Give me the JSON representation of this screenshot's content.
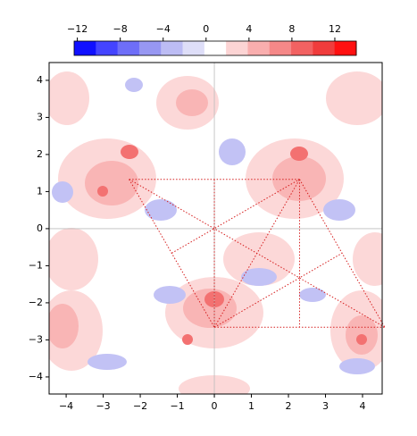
{
  "chart_data": {
    "type": "contour",
    "colorbar": {
      "lim": [
        -12.3,
        14
      ],
      "ticks": [
        {
          "value": -12,
          "label": "−12"
        },
        {
          "value": -8,
          "label": "−8"
        },
        {
          "value": -4,
          "label": "−4"
        },
        0,
        4,
        8,
        12
      ],
      "colors": [
        "#1010ff",
        "#4444ff",
        "#6e6ef8",
        "#9797f2",
        "#bcbcf4",
        "#dedef8",
        "#ffffff",
        "#fcd4d4",
        "#f9aeae",
        "#f58888",
        "#f26262",
        "#f03c3c",
        "#ff1010"
      ]
    },
    "xlim": [
      -4.46,
      4.53
    ],
    "ylim": [
      -4.46,
      4.48
    ],
    "xticks": [
      {
        "value": -4,
        "label": "−4"
      },
      {
        "value": -3,
        "label": "−3"
      },
      {
        "value": -2,
        "label": "−2"
      },
      {
        "value": -1,
        "label": "−1"
      },
      0,
      1,
      2,
      3,
      4
    ],
    "yticks": [
      {
        "value": -4,
        "label": "−4"
      },
      {
        "value": -3,
        "label": "−3"
      },
      {
        "value": -2,
        "label": "−2"
      },
      {
        "value": -1,
        "label": "−1"
      },
      0,
      1,
      2,
      3,
      4
    ],
    "line_color": "#d62020",
    "lines": {
      "x1": [
        -2.3,
        -2.3,
        0,
        2.3,
        0,
        2.3,
        -2.3,
        -1.15,
        0,
        0
      ],
      "y1": [
        1.33,
        1.33,
        -2.66,
        1.33,
        -2.66,
        1.33,
        1.33,
        -0.66,
        -2.66,
        1.33
      ],
      "x2": [
        2.3,
        0,
        2.3,
        4.6,
        4.6,
        2.3,
        4.6,
        2.3,
        3.45,
        0
      ],
      "y2": [
        1.33,
        -2.66,
        1.33,
        -2.66,
        -2.66,
        -2.66,
        -2.66,
        1.33,
        -0.66,
        -2.66
      ]
    }
  }
}
